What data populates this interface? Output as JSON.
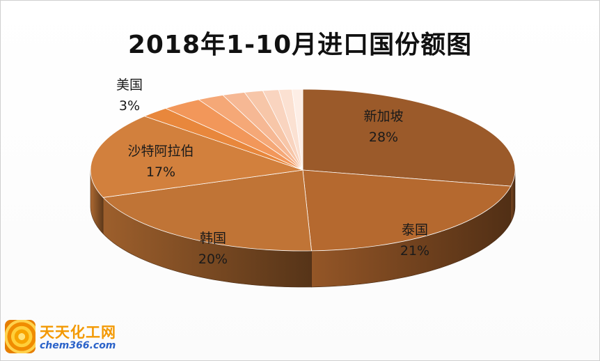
{
  "chart_data": {
    "type": "pie",
    "title": "2018年1-10月进口国份额图",
    "slices": [
      {
        "name": "新加坡",
        "pct_label": "28%",
        "value": 28,
        "color": "#9b5a2a",
        "show_label": true
      },
      {
        "name": "泰国",
        "pct_label": "21%",
        "value": 21,
        "color": "#b5692f",
        "show_label": true
      },
      {
        "name": "韩国",
        "pct_label": "20%",
        "value": 20,
        "color": "#c07436",
        "show_label": true
      },
      {
        "name": "沙特阿拉伯",
        "pct_label": "17%",
        "value": 17,
        "color": "#d2803d",
        "show_label": true
      },
      {
        "name": "",
        "pct_label": "",
        "value": 2.2,
        "color": "#e8873c",
        "show_label": false
      },
      {
        "name": "美国",
        "pct_label": "3%",
        "value": 3,
        "color": "#f2975a",
        "show_label": true
      },
      {
        "name": "",
        "pct_label": "",
        "value": 2.0,
        "color": "#f5a877",
        "show_label": false
      },
      {
        "name": "",
        "pct_label": "",
        "value": 1.7,
        "color": "#f6b894",
        "show_label": false
      },
      {
        "name": "",
        "pct_label": "",
        "value": 1.4,
        "color": "#f7c6a8",
        "show_label": false
      },
      {
        "name": "",
        "pct_label": "",
        "value": 1.2,
        "color": "#f9d4bf",
        "show_label": false
      },
      {
        "name": "",
        "pct_label": "",
        "value": 1.0,
        "color": "#fbe1d2",
        "show_label": false
      },
      {
        "name": "",
        "pct_label": "",
        "value": 0.8,
        "color": "#fdeee6",
        "show_label": false
      }
    ],
    "legend": "none",
    "style": "3d"
  },
  "logo": {
    "name_cn": "天天化工网",
    "domain": "chem366.com"
  }
}
